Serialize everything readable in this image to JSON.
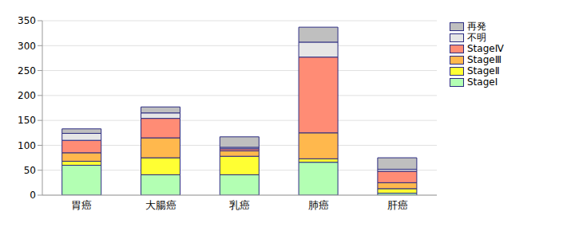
{
  "chart_data": {
    "type": "bar",
    "stacked": true,
    "grid": true,
    "legend": "top-right",
    "categories": [
      "胃癌",
      "大腸癌",
      "乳癌",
      "肺癌",
      "肝癌"
    ],
    "ylim": [
      0,
      350
    ],
    "yticks": [
      0,
      50,
      100,
      150,
      200,
      250,
      300,
      350
    ],
    "series": [
      {
        "name": "StageⅠ",
        "color": "#b3ffb3",
        "values": [
          60,
          41,
          41,
          66,
          4
        ]
      },
      {
        "name": "StageⅡ",
        "color": "#ffff33",
        "values": [
          8,
          34,
          37,
          7,
          9
        ]
      },
      {
        "name": "StageⅢ",
        "color": "#ffb84d",
        "values": [
          17,
          40,
          11,
          52,
          12
        ]
      },
      {
        "name": "StageⅣ",
        "color": "#ff8c75",
        "values": [
          25,
          39,
          4,
          152,
          23
        ]
      },
      {
        "name": "不明",
        "color": "#e6e6e6",
        "values": [
          14,
          11,
          3,
          30,
          4
        ]
      },
      {
        "name": "再発",
        "color": "#bfbfbf",
        "values": [
          9,
          12,
          21,
          30,
          23
        ]
      }
    ]
  }
}
